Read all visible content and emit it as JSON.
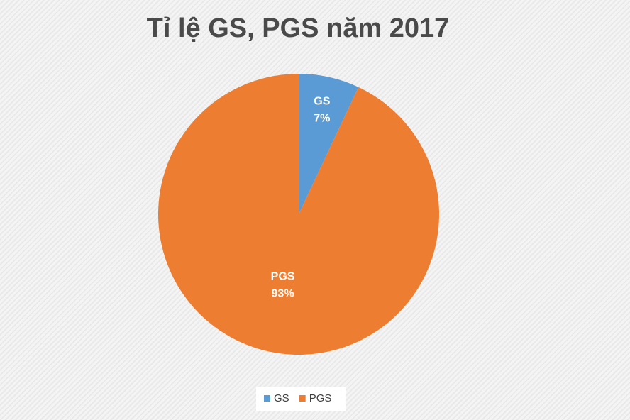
{
  "chart_data": {
    "type": "pie",
    "title": "Tỉ lệ GS, PGS năm 2017",
    "categories": [
      "GS",
      "PGS"
    ],
    "values": [
      7,
      93
    ],
    "value_labels": [
      "7%",
      "93%"
    ],
    "colors": [
      "#5b9bd5",
      "#ed7d31"
    ],
    "legend": "bottom"
  }
}
